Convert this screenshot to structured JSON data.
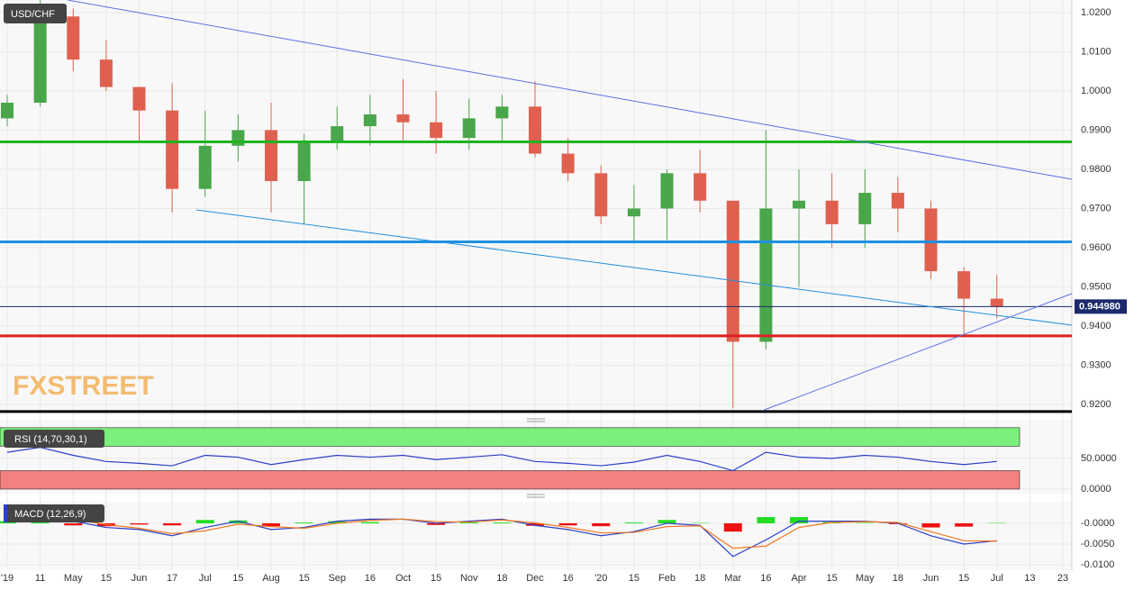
{
  "chart_data": [
    {
      "type": "candlestick",
      "title": "USD/CHF",
      "watermark": "FXSTREET",
      "categories": [
        "'19",
        "11",
        "May",
        "15",
        "Jun",
        "17",
        "Jul",
        "15",
        "Aug",
        "15",
        "Sep",
        "16",
        "Oct",
        "15",
        "Nov",
        "18",
        "Dec",
        "16",
        "'20",
        "15",
        "Feb",
        "18",
        "Mar",
        "16",
        "Apr",
        "15",
        "May",
        "18",
        "Jun",
        "15",
        "Jul",
        "13",
        "23"
      ],
      "open": [
        0.993,
        0.997,
        1.019,
        1.008,
        1.001,
        0.995,
        0.975,
        0.986,
        0.99,
        0.977,
        0.987,
        0.991,
        0.994,
        0.992,
        0.988,
        0.993,
        0.996,
        0.984,
        0.979,
        0.968,
        0.97,
        0.979,
        0.972,
        0.936,
        0.97,
        0.972,
        0.966,
        0.974,
        0.97,
        0.954,
        0.947,
        null,
        null
      ],
      "high": [
        0.999,
        1.0235,
        1.021,
        1.013,
        1.001,
        1.002,
        0.995,
        0.994,
        0.997,
        0.989,
        0.996,
        0.999,
        1.003,
        1.0,
        0.998,
        0.999,
        1.0025,
        0.988,
        0.981,
        0.976,
        0.98,
        0.985,
        0.972,
        0.99,
        0.98,
        0.979,
        0.98,
        0.978,
        0.972,
        0.955,
        0.953,
        null,
        null
      ],
      "low": [
        0.991,
        0.996,
        1.005,
        1.0,
        0.987,
        0.969,
        0.973,
        0.982,
        0.969,
        0.966,
        0.985,
        0.986,
        0.987,
        0.984,
        0.985,
        0.987,
        0.983,
        0.977,
        0.966,
        0.961,
        0.962,
        0.969,
        0.919,
        0.934,
        0.95,
        0.96,
        0.96,
        0.964,
        0.952,
        0.938,
        0.942,
        null,
        null
      ],
      "close": [
        0.997,
        1.019,
        1.008,
        1.001,
        0.995,
        0.975,
        0.986,
        0.99,
        0.977,
        0.987,
        0.991,
        0.994,
        0.992,
        0.988,
        0.993,
        0.996,
        0.984,
        0.979,
        0.968,
        0.97,
        0.979,
        0.972,
        0.936,
        0.97,
        0.972,
        0.966,
        0.974,
        0.97,
        0.954,
        0.947,
        0.945,
        null,
        null
      ],
      "up_color": "#4aa64a",
      "down_color": "#e0604f",
      "ylim": [
        0.9184,
        1.0232
      ],
      "yticks": [
        {
          "value": 1.02,
          "label": "1.0200"
        },
        {
          "value": 1.01,
          "label": "1.0100"
        },
        {
          "value": 1.0,
          "label": "1.0000"
        },
        {
          "value": 0.99,
          "label": "0.9900"
        },
        {
          "value": 0.98,
          "label": "0.9800"
        },
        {
          "value": 0.97,
          "label": "0.9700"
        },
        {
          "value": 0.96,
          "label": "0.9600"
        },
        {
          "value": 0.95,
          "label": "0.9500"
        },
        {
          "value": 0.94,
          "label": "0.9400"
        },
        {
          "value": 0.93,
          "label": "0.9300"
        },
        {
          "value": 0.92,
          "label": "0.9200"
        }
      ],
      "levels": [
        {
          "value": 0.987,
          "color": "#1fb31f"
        },
        {
          "value": 0.9615,
          "color": "#1e90e0"
        },
        {
          "value": 0.9375,
          "color": "#e02020"
        },
        {
          "value": 0.9182,
          "color": "#000000"
        }
      ],
      "last_price": {
        "value": 0.94498,
        "label": "0.944980"
      }
    },
    {
      "type": "line",
      "title": "RSI (14,70,30,1)",
      "series": [
        {
          "color": "#2b3fc8",
          "values": [
            60,
            68,
            55,
            45,
            42,
            38,
            55,
            52,
            40,
            48,
            55,
            52,
            55,
            48,
            52,
            56,
            45,
            42,
            38,
            44,
            55,
            45,
            30,
            60,
            52,
            50,
            55,
            52,
            45,
            40,
            45,
            null,
            null
          ]
        }
      ],
      "bands": [
        {
          "from": 70,
          "to": 100,
          "color": "#7cf07c"
        },
        {
          "from": 0,
          "to": 30,
          "color": "#f58080"
        }
      ],
      "ylim": [
        -7.4,
        113
      ],
      "yticks": [
        {
          "value": 50,
          "label": "50.0000"
        },
        {
          "value": 0,
          "label": "0.0000"
        }
      ]
    },
    {
      "type": "macd",
      "title": "MACD (12,26,9)",
      "series": [
        {
          "color": "#2b3fc8",
          "values": [
            0.001,
            0.002,
            0.0005,
            -0.001,
            -0.0015,
            -0.003,
            -0.001,
            0.0005,
            -0.0015,
            -0.001,
            0.0005,
            0.001,
            0.001,
            0,
            0.0005,
            0.001,
            -0.0005,
            -0.0015,
            -0.003,
            -0.002,
            0,
            -0.0005,
            -0.008,
            -0.004,
            0.0005,
            0.0005,
            0.0005,
            0,
            -0.003,
            -0.005,
            -0.0042,
            null,
            null
          ]
        },
        {
          "color": "#f07820",
          "values": [
            0.0005,
            0.0015,
            0.001,
            -0.0003,
            -0.0012,
            -0.0025,
            -0.0018,
            -0.0002,
            -0.0008,
            -0.0012,
            0,
            0.0007,
            0.001,
            0.0004,
            0.0003,
            0.0008,
            0.0001,
            -0.001,
            -0.0023,
            -0.0022,
            -0.0008,
            -0.0006,
            -0.006,
            -0.0055,
            -0.001,
            0.0002,
            0.0004,
            0.0002,
            -0.002,
            -0.0042,
            -0.0043,
            null,
            null
          ]
        }
      ],
      "histogram": [
        0.0005,
        0.0005,
        -0.0005,
        -0.0007,
        -0.0003,
        -0.0005,
        0.0008,
        0.0007,
        -0.0007,
        0.0002,
        0.0005,
        0.0003,
        0,
        -0.0004,
        0.0002,
        0.0002,
        -0.0006,
        -0.0005,
        -0.0007,
        0.0002,
        0.0008,
        0.0001,
        -0.002,
        0.0015,
        0.0015,
        0.0003,
        0.0001,
        -0.0002,
        -0.001,
        -0.0008,
        0.0001,
        null,
        null
      ],
      "hist_up": "#22dd22",
      "hist_down": "#ee1111",
      "ylim": [
        -0.0113,
        0.0052
      ],
      "yticks": [
        {
          "value": 0,
          "label": "-0.0000"
        },
        {
          "value": -0.005,
          "label": "-0.0050"
        },
        {
          "value": -0.01,
          "label": "-0.0100"
        }
      ]
    }
  ]
}
